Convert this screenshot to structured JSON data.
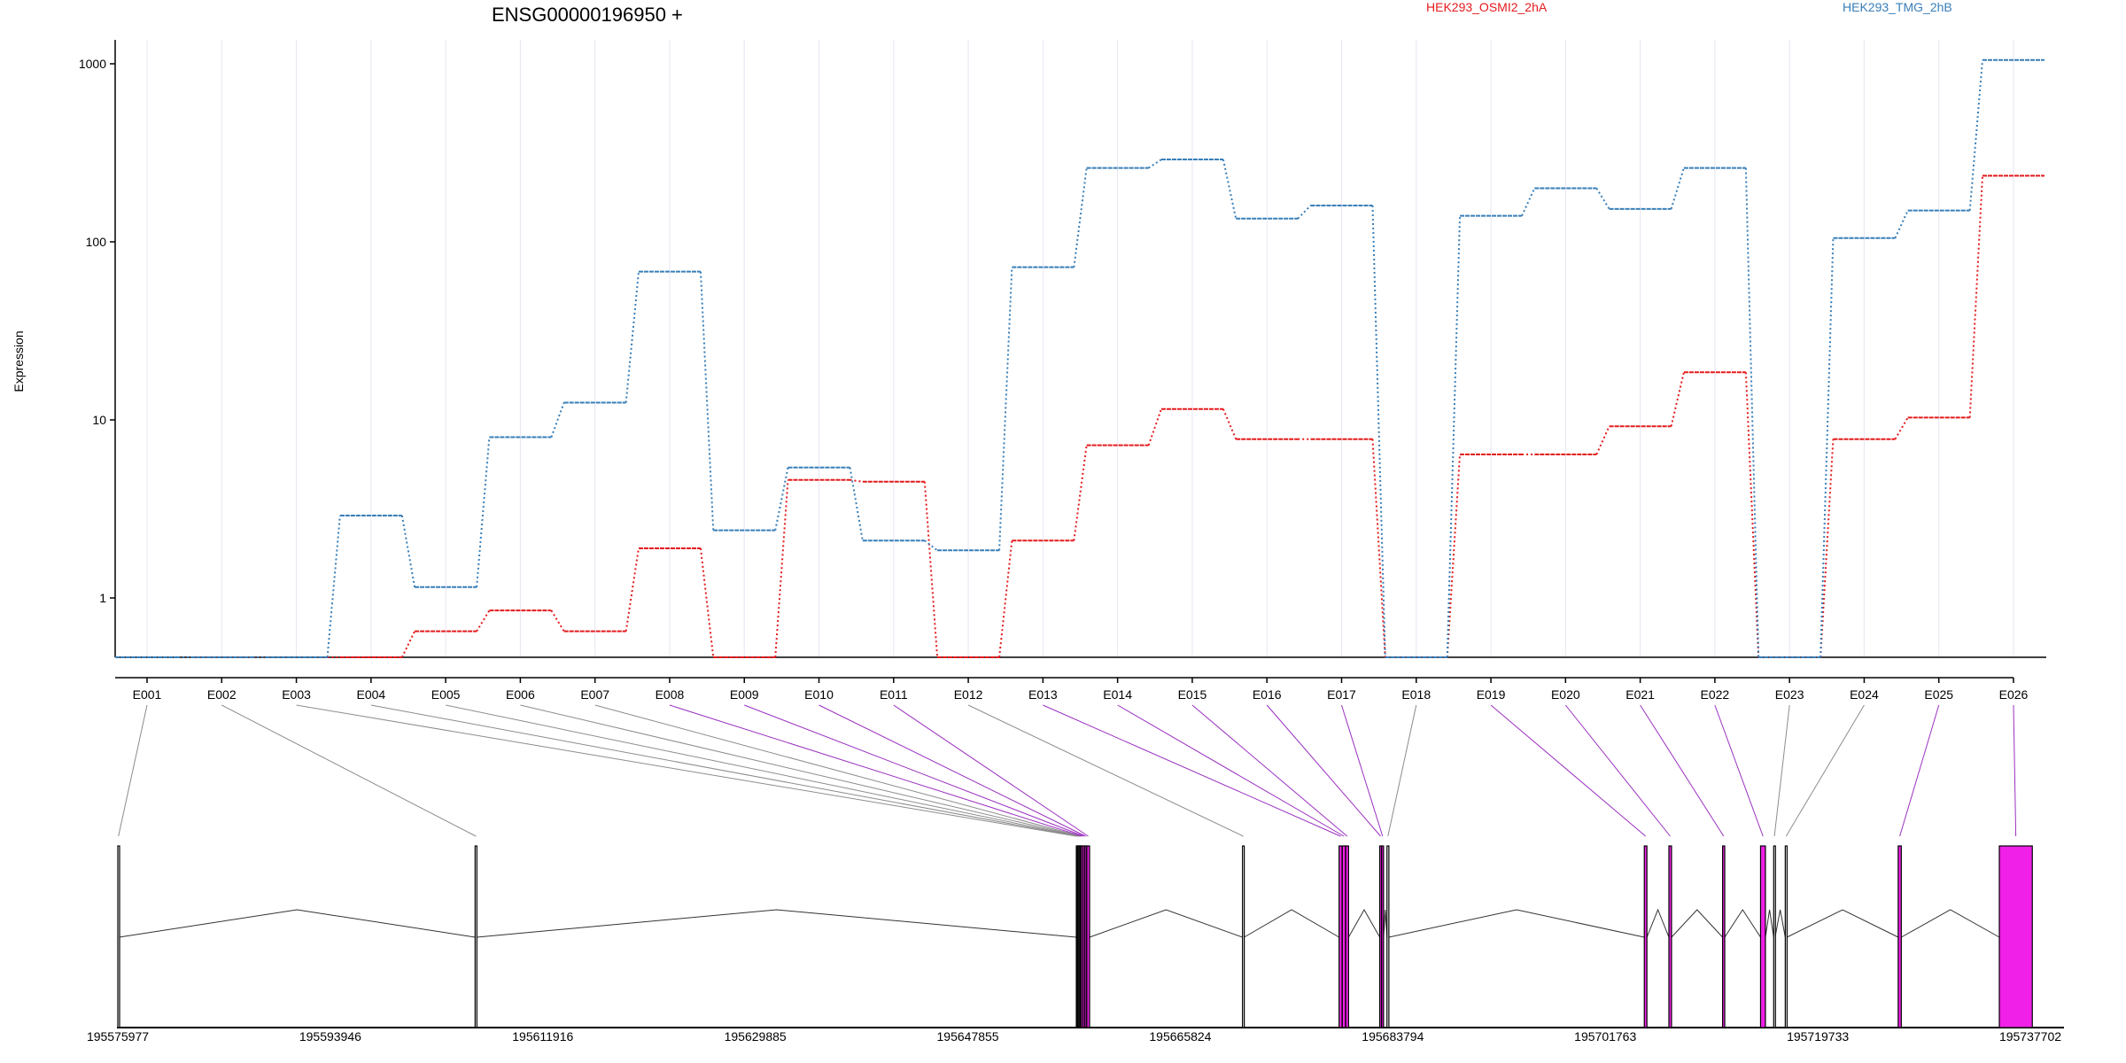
{
  "chart_data": {
    "type": "line",
    "title": "ENSG00000196950 +",
    "ylabel": "Expression",
    "yscale": "log",
    "yticks": [
      1,
      10,
      100,
      1000
    ],
    "ylim": [
      0.5,
      1200
    ],
    "legend_placement": "top",
    "categories": [
      "E001",
      "E002",
      "E003",
      "E004",
      "E005",
      "E006",
      "E007",
      "E008",
      "E009",
      "E010",
      "E011",
      "E012",
      "E013",
      "E014",
      "E015",
      "E016",
      "E017",
      "E018",
      "E019",
      "E020",
      "E021",
      "E022",
      "E023",
      "E024",
      "E025",
      "E026"
    ],
    "series": [
      {
        "name": "HEK293_OSMI2_2hA",
        "color": "#e41a1c",
        "values": [
          0.5,
          0.5,
          0.5,
          0.5,
          0.65,
          0.85,
          0.65,
          1.9,
          0.5,
          4.6,
          4.5,
          0.5,
          2.1,
          7.2,
          11.5,
          7.8,
          7.8,
          0.5,
          6.4,
          6.4,
          9.2,
          18.5,
          0.5,
          7.8,
          10.3,
          235
        ]
      },
      {
        "name": "HEK293_TMG_2hB",
        "color": "#377eb8",
        "values": [
          0.5,
          0.5,
          0.5,
          2.9,
          1.15,
          8,
          12.5,
          68,
          2.4,
          5.4,
          2.1,
          1.85,
          72,
          260,
          290,
          135,
          160,
          0.5,
          140,
          200,
          153,
          260,
          0.5,
          105,
          150,
          1050
        ]
      }
    ],
    "gene_model": {
      "coordinate_ticks": [
        "195575977",
        "195593946",
        "195611916",
        "195629885",
        "195647855",
        "195665824",
        "195683794",
        "195701763",
        "195719733",
        "195737702"
      ],
      "exons": [
        {
          "id": "E001",
          "start": 195575977,
          "end": 195576080,
          "highlight": false
        },
        {
          "id": "E002",
          "start": 195606190,
          "end": 195606330,
          "highlight": false
        },
        {
          "id": "E003",
          "start": 195657030,
          "end": 195657070,
          "highlight": false
        },
        {
          "id": "E004",
          "start": 195657110,
          "end": 195657150,
          "highlight": false
        },
        {
          "id": "E005",
          "start": 195657190,
          "end": 195657230,
          "highlight": false
        },
        {
          "id": "E006",
          "start": 195657270,
          "end": 195657310,
          "highlight": false
        },
        {
          "id": "E007",
          "start": 195657350,
          "end": 195657390,
          "highlight": false
        },
        {
          "id": "E008",
          "start": 195657430,
          "end": 195657560,
          "highlight": true
        },
        {
          "id": "E009",
          "start": 195657600,
          "end": 195657720,
          "highlight": true
        },
        {
          "id": "E010",
          "start": 195657760,
          "end": 195657880,
          "highlight": true
        },
        {
          "id": "E011",
          "start": 195657920,
          "end": 195658150,
          "highlight": true
        },
        {
          "id": "E012",
          "start": 195671080,
          "end": 195671220,
          "highlight": false
        },
        {
          "id": "E013",
          "start": 195679250,
          "end": 195679500,
          "highlight": true
        },
        {
          "id": "E014",
          "start": 195679520,
          "end": 195679790,
          "highlight": true
        },
        {
          "id": "E015",
          "start": 195679810,
          "end": 195680050,
          "highlight": true
        },
        {
          "id": "E016",
          "start": 195682690,
          "end": 195682830,
          "highlight": true
        },
        {
          "id": "E017",
          "start": 195682850,
          "end": 195683010,
          "highlight": true
        },
        {
          "id": "E018",
          "start": 195683300,
          "end": 195683460,
          "highlight": false
        },
        {
          "id": "E019",
          "start": 195705060,
          "end": 195705280,
          "highlight": true
        },
        {
          "id": "E020",
          "start": 195707140,
          "end": 195707360,
          "highlight": true
        },
        {
          "id": "E021",
          "start": 195711680,
          "end": 195711860,
          "highlight": true
        },
        {
          "id": "E022",
          "start": 195714890,
          "end": 195715300,
          "highlight": true
        },
        {
          "id": "E023",
          "start": 195716000,
          "end": 195716120,
          "highlight": false
        },
        {
          "id": "E024",
          "start": 195716980,
          "end": 195717120,
          "highlight": false
        },
        {
          "id": "E025",
          "start": 195726530,
          "end": 195726790,
          "highlight": true
        },
        {
          "id": "E026",
          "start": 195735080,
          "end": 195737870,
          "highlight": true
        }
      ]
    }
  }
}
